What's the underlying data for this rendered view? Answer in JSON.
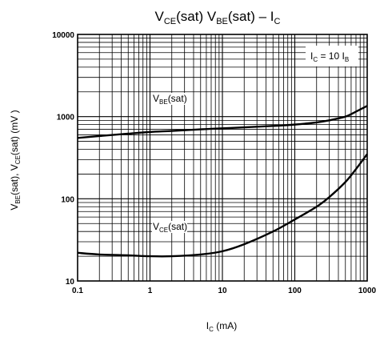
{
  "chart_data": {
    "type": "line",
    "title": {
      "p1_main": "V",
      "p1_sub": "CE",
      "p1_rest": "(sat) ",
      "p2_main": "V",
      "p2_sub": "BE",
      "p2_rest": "(sat)",
      "p3": " – ",
      "p4_main": "I",
      "p4_sub": "C"
    },
    "xlabel": {
      "main": "I",
      "sub": "C",
      "rest": " (mA)"
    },
    "ylabel": {
      "v1": "V",
      "s1": "BE",
      "r1": "(sat), ",
      "v2": "V",
      "s2": "CE",
      "r2": "(sat) (mV )"
    },
    "x_scale": "log",
    "y_scale": "log",
    "xlim": [
      0.1,
      1000
    ],
    "ylim": [
      10,
      10000
    ],
    "x_ticks": [
      "0.1",
      "1",
      "10",
      "100",
      "1000"
    ],
    "y_ticks": [
      "10",
      "100",
      "1000",
      "10000"
    ],
    "grid": true,
    "annotation": {
      "main1": "I",
      "sub1": "C",
      "mid": " = 10 I",
      "sub2": "B"
    },
    "series": [
      {
        "name": "VBE(sat)",
        "label": {
          "main": "V",
          "sub": "BE",
          "rest": "(sat)"
        },
        "x": [
          0.1,
          0.2,
          0.5,
          1,
          2,
          5,
          10,
          20,
          50,
          100,
          200,
          300,
          500,
          700,
          1000
        ],
        "y": [
          550,
          580,
          620,
          650,
          670,
          700,
          720,
          740,
          770,
          800,
          850,
          900,
          1000,
          1150,
          1350
        ]
      },
      {
        "name": "VCE(sat)",
        "label": {
          "main": "V",
          "sub": "CE",
          "rest": "(sat)"
        },
        "x": [
          0.1,
          0.2,
          0.5,
          1,
          2,
          5,
          10,
          20,
          50,
          100,
          200,
          300,
          500,
          700,
          1000
        ],
        "y": [
          22,
          21,
          20.5,
          20,
          20,
          21,
          23,
          28,
          40,
          56,
          80,
          105,
          160,
          230,
          350
        ]
      }
    ]
  }
}
